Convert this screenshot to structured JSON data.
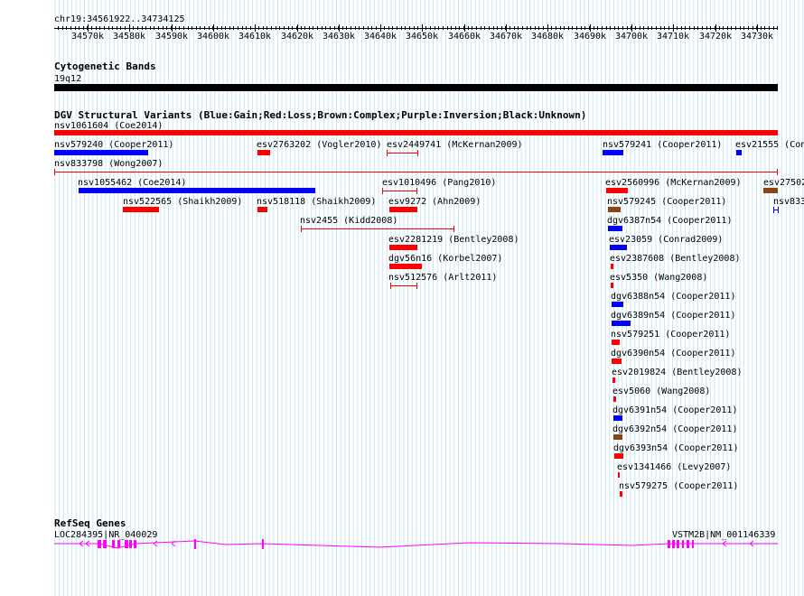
{
  "ruler": {
    "position": "chr19:34561922..34734125",
    "ticks": [
      "34570k",
      "34580k",
      "34590k",
      "34600k",
      "34610k",
      "34620k",
      "34630k",
      "34640k",
      "34650k",
      "34660k",
      "34670k",
      "34680k",
      "34690k",
      "34700k",
      "34710k",
      "34720k",
      "34730k"
    ]
  },
  "cytoband": {
    "title": "Cytogenetic Bands",
    "label": "19q12"
  },
  "dgv": {
    "title": "DGV Structural Variants (Blue:Gain;Red:Loss;Brown:Complex;Purple:Inversion;Black:Unknown)",
    "colors": {
      "blue": "#0000ff",
      "red": "#ff0000",
      "brown": "#8b4513"
    },
    "items": [
      {
        "label": "nsv1061604 (Coe2014)",
        "color": "red",
        "type": "bar"
      },
      {
        "label": "nsv579240 (Cooper2011)",
        "color": "blue",
        "type": "bar"
      },
      {
        "label": "esv2763202 (Vogler2010)",
        "color": "red",
        "type": "bar"
      },
      {
        "label": "esv2449741 (McKernan2009)",
        "color": "red",
        "type": "thin"
      },
      {
        "label": "nsv579241 (Cooper2011)",
        "color": "blue",
        "type": "bar"
      },
      {
        "label": "esv21555 (Con",
        "color": "blue",
        "type": "bar"
      },
      {
        "label": "nsv833798 (Wong2007)",
        "color": "red",
        "type": "thin"
      },
      {
        "label": "nsv1055462 (Coe2014)",
        "color": "blue",
        "type": "bar"
      },
      {
        "label": "esv1010496 (Pang2010)",
        "color": "red",
        "type": "thin"
      },
      {
        "label": "esv2560996 (McKernan2009)",
        "color": "red",
        "type": "bar"
      },
      {
        "label": "esv27502",
        "color": "brown",
        "type": "bar"
      },
      {
        "label": "nsv522565 (Shaikh2009)",
        "color": "red",
        "type": "bar"
      },
      {
        "label": "nsv518118 (Shaikh2009)",
        "color": "red",
        "type": "bar"
      },
      {
        "label": "esv9272 (Ahn2009)",
        "color": "red",
        "type": "bar"
      },
      {
        "label": "nsv579245 (Cooper2011)",
        "color": "brown",
        "type": "bar"
      },
      {
        "label": "nsv833",
        "color": "blue",
        "type": "thin"
      },
      {
        "label": "nsv2455 (Kidd2008)",
        "color": "red",
        "type": "thin"
      },
      {
        "label": "dgv6387n54 (Cooper2011)",
        "color": "blue",
        "type": "bar"
      },
      {
        "label": "esv2281219 (Bentley2008)",
        "color": "red",
        "type": "bar"
      },
      {
        "label": "esv23059 (Conrad2009)",
        "color": "blue",
        "type": "bar"
      },
      {
        "label": "dgv56n16 (Korbel2007)",
        "color": "red",
        "type": "bar"
      },
      {
        "label": "esv2387608 (Bentley2008)",
        "color": "red",
        "type": "bar"
      },
      {
        "label": "nsv512576 (Arlt2011)",
        "color": "red",
        "type": "thin"
      },
      {
        "label": "esv5350 (Wang2008)",
        "color": "red",
        "type": "bar"
      },
      {
        "label": "dgv6388n54 (Cooper2011)",
        "color": "blue",
        "type": "bar"
      },
      {
        "label": "dgv6389n54 (Cooper2011)",
        "color": "blue",
        "type": "bar"
      },
      {
        "label": "nsv579251 (Cooper2011)",
        "color": "red",
        "type": "bar"
      },
      {
        "label": "dgv6390n54 (Cooper2011)",
        "color": "red",
        "type": "bar"
      },
      {
        "label": "esv2019824 (Bentley2008)",
        "color": "red",
        "type": "bar"
      },
      {
        "label": "esv5060 (Wang2008)",
        "color": "red",
        "type": "bar"
      },
      {
        "label": "dgv6391n54 (Cooper2011)",
        "color": "blue",
        "type": "bar"
      },
      {
        "label": "dgv6392n54 (Cooper2011)",
        "color": "brown",
        "type": "bar"
      },
      {
        "label": "dgv6393n54 (Cooper2011)",
        "color": "red",
        "type": "bar"
      },
      {
        "label": "esv1341466 (Levy2007)",
        "color": "red",
        "type": "bar"
      },
      {
        "label": "nsv579275 (Cooper2011)",
        "color": "red",
        "type": "bar"
      }
    ]
  },
  "refseq": {
    "title": "RefSeq Genes",
    "genes": [
      "LOC284395|NR_040029",
      "VSTM2B|NM_001146339"
    ],
    "color": "#ff00ff"
  }
}
